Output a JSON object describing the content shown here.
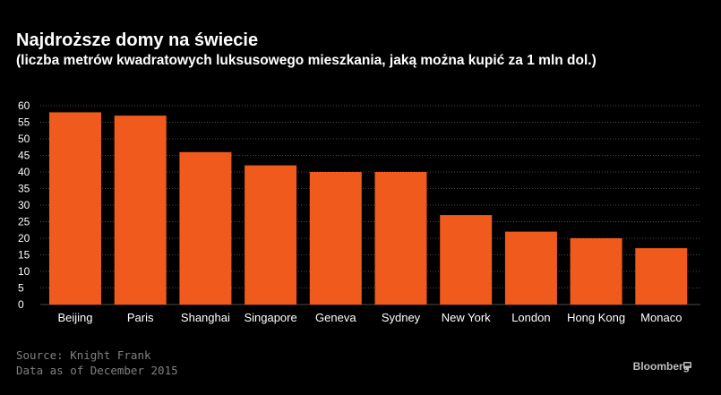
{
  "header": {
    "title": "Najdroższe domy na świecie",
    "subtitle": "(liczba metrów kwadratowych luksusowego mieszkania, jaką można kupić za 1 mln dol.)"
  },
  "footer": {
    "source": "Source: Knight Frank",
    "date_note": "Data as of December 2015",
    "brand": "Bloomberg",
    "brand_icon": "bloomberg-terminal-icon"
  },
  "colors": {
    "bar": "#f05a1c",
    "background": "#000000",
    "grid": "#4a4a4a"
  },
  "chart_data": {
    "type": "bar",
    "title": "Najdroższe domy na świecie",
    "subtitle": "(liczba metrów kwadratowych luksusowego mieszkania, jaką można kupić za 1 mln dol.)",
    "xlabel": "",
    "ylabel": "",
    "categories": [
      "Beijing",
      "Paris",
      "Shanghai",
      "Singapore",
      "Geneva",
      "Sydney",
      "New York",
      "London",
      "Hong Kong",
      "Monaco"
    ],
    "values": [
      58,
      57,
      46,
      42,
      40,
      40,
      27,
      22,
      20,
      17
    ],
    "ylim": [
      0,
      60
    ],
    "yticks": [
      0,
      5,
      10,
      15,
      20,
      25,
      30,
      35,
      40,
      45,
      50,
      55,
      60
    ],
    "grid": "horizontal dotted",
    "legend": "none"
  }
}
